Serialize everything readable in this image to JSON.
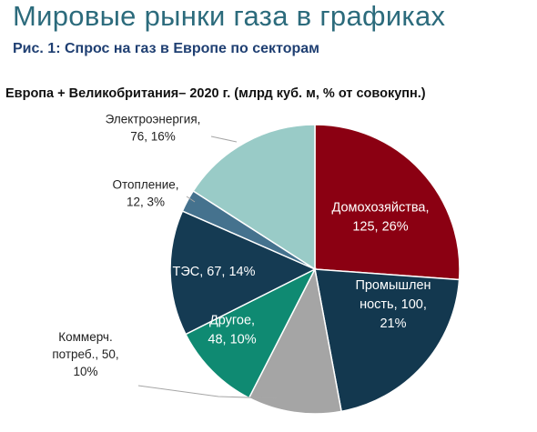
{
  "header": {
    "title": "Мировые рынки газа в графиках",
    "figure_caption": "Рис. 1: Спрос на газ в Европе по секторам"
  },
  "chart_data": {
    "type": "pie",
    "title": "Европа + Великобритания– 2020 г. (млрд куб. м, % от совокупн.)",
    "slices": [
      {
        "category": "Домохозяйства",
        "value": 125,
        "percent": 26,
        "label_lines": [
          "Домохозяйства,",
          "125, 26%"
        ],
        "color": "#8b0012",
        "label_inside": true
      },
      {
        "category": "Промышленность",
        "value": 100,
        "percent": 21,
        "label_lines": [
          "Промышлен",
          "ность, 100,",
          "21%"
        ],
        "color": "#13384f",
        "label_inside": true
      },
      {
        "category": "Коммерч. потреб.",
        "value": 50,
        "percent": 10,
        "label_lines": [
          "Коммерч.",
          "потреб., 50,",
          "10%"
        ],
        "color": "#a5a5a5",
        "label_inside": false
      },
      {
        "category": "Другое",
        "value": 48,
        "percent": 10,
        "label_lines": [
          "Другое,",
          "48, 10%"
        ],
        "color": "#0f8a72",
        "label_inside": true
      },
      {
        "category": "ТЭС",
        "value": 67,
        "percent": 14,
        "label_lines": [
          "ТЭС, 67, 14%"
        ],
        "color": "#153b53",
        "label_inside": true
      },
      {
        "category": "Отопление",
        "value": 12,
        "percent": 3,
        "label_lines": [
          "Отопление,",
          "12, 3%"
        ],
        "color": "#45728e",
        "label_inside": false
      },
      {
        "category": "Электроэнергия",
        "value": 76,
        "percent": 16,
        "label_lines": [
          "Электроэнергия,",
          "76, 16%"
        ],
        "color": "#99cbc7",
        "label_inside": false
      }
    ]
  }
}
